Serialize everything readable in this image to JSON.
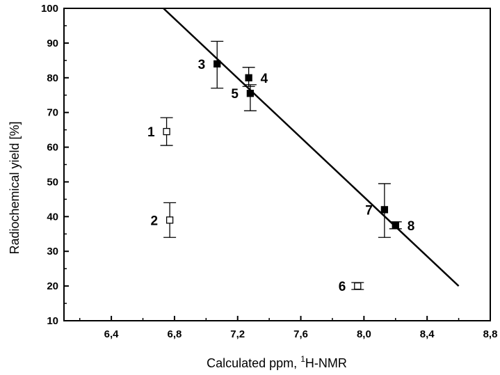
{
  "chart_data": {
    "type": "scatter",
    "title": "",
    "xlabel_prefix": "Calculated ppm, ",
    "xlabel_sup": "1",
    "xlabel_suffix": "H-NMR",
    "ylabel": "Radiochemical yield [%]",
    "xlim": [
      6.1,
      8.8
    ],
    "ylim": [
      10,
      100
    ],
    "x_ticks": [
      6.4,
      6.8,
      7.2,
      7.6,
      8.0,
      8.4,
      8.8
    ],
    "x_tick_labels": [
      "6,4",
      "6,8",
      "7,2",
      "7,6",
      "8,0",
      "8,4",
      "8,8"
    ],
    "y_ticks": [
      10,
      20,
      30,
      40,
      50,
      60,
      70,
      80,
      90,
      100
    ],
    "y_tick_labels": [
      "10",
      "20",
      "30",
      "40",
      "50",
      "60",
      "70",
      "80",
      "90",
      "100"
    ],
    "grid": false,
    "points": [
      {
        "label": "1",
        "x": 6.75,
        "y": 64.5,
        "err_low": 60.5,
        "err_high": 68.5,
        "filled": false,
        "label_side": "left"
      },
      {
        "label": "2",
        "x": 6.77,
        "y": 39.0,
        "err_low": 34.0,
        "err_high": 44.0,
        "filled": false,
        "label_side": "left"
      },
      {
        "label": "3",
        "x": 7.07,
        "y": 84.0,
        "err_low": 77.0,
        "err_high": 90.5,
        "filled": true,
        "label_side": "left"
      },
      {
        "label": "4",
        "x": 7.27,
        "y": 80.0,
        "err_low": 77.5,
        "err_high": 83.0,
        "filled": true,
        "label_side": "right"
      },
      {
        "label": "5",
        "x": 7.28,
        "y": 75.5,
        "err_low": 70.5,
        "err_high": 78.0,
        "filled": true,
        "label_side": "left"
      },
      {
        "label": "6",
        "x": 7.96,
        "y": 20.0,
        "err_low": 19.0,
        "err_high": 21.0,
        "filled": false,
        "label_side": "left"
      },
      {
        "label": "7",
        "x": 8.13,
        "y": 42.0,
        "err_low": 34.0,
        "err_high": 49.5,
        "filled": true,
        "label_side": "left"
      },
      {
        "label": "8",
        "x": 8.2,
        "y": 37.5,
        "err_low": 36.5,
        "err_high": 38.5,
        "filled": true,
        "label_side": "right"
      }
    ],
    "fit_line": {
      "x1": 6.73,
      "y1": 100,
      "x2": 8.6,
      "y2": 20
    }
  }
}
